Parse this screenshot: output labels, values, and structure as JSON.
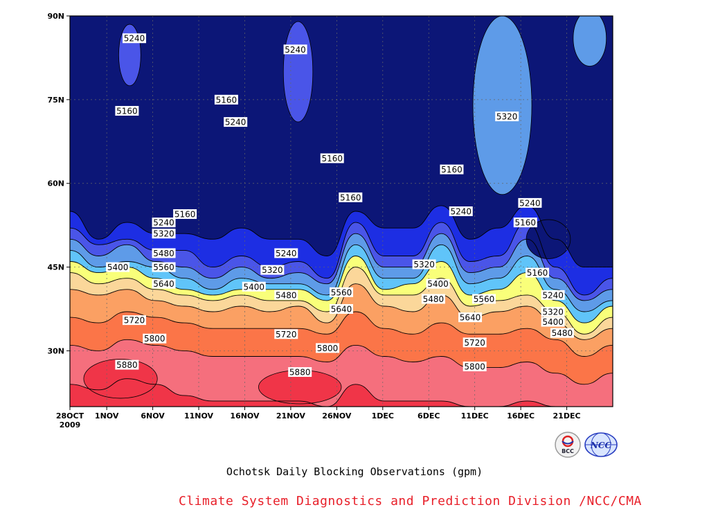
{
  "chart_data": {
    "type": "heatmap",
    "title": "Ochotsk Daily Blocking Observations (gpm)",
    "credit": "Climate System Diagnostics and Prediction Division /NCC/CMA",
    "x_axis": {
      "start_label": [
        "28OCT",
        "2009"
      ],
      "tick_labels": [
        "28OCT",
        "1NOV",
        "6NOV",
        "11NOV",
        "16NOV",
        "21NOV",
        "26NOV",
        "1DEC",
        "6DEC",
        "11DEC",
        "16DEC",
        "21DEC"
      ],
      "tick_days": [
        0,
        4,
        9,
        14,
        19,
        24,
        29,
        34,
        39,
        44,
        49,
        54
      ],
      "range_days": [
        0,
        59
      ]
    },
    "y_axis": {
      "tick_labels": [
        "30N",
        "45N",
        "60N",
        "75N",
        "90N"
      ],
      "tick_values": [
        30,
        45,
        60,
        75,
        90
      ],
      "range": [
        20,
        90
      ]
    },
    "contour_levels": [
      5160,
      5240,
      5320,
      5400,
      5480,
      5560,
      5640,
      5720,
      5800,
      5880
    ],
    "fill_colors": {
      "below_5160": "#0c1677",
      "5160_5240": "#1d2ee3",
      "5240_5320": "#4a55e8",
      "5320_5400": "#5e9be8",
      "5400_5480": "#60c4f9",
      "5480_5560": "#f9ff7a",
      "5560_5640": "#fbd79a",
      "5640_5720": "#fba063",
      "5720_5800": "#fb7548",
      "5800_5880": "#f56f7d",
      "above_5880": "#f03548"
    },
    "series": [
      {
        "level": 5160,
        "lat": [
          55,
          50,
          53,
          51,
          51,
          50,
          52,
          50,
          50,
          47,
          55,
          52,
          52,
          56,
          50,
          52,
          56,
          50,
          45,
          45
        ]
      },
      {
        "level": 5240,
        "lat": [
          52,
          49,
          50,
          48,
          48,
          45,
          47,
          45,
          46,
          43,
          53,
          47,
          47,
          53,
          46,
          47,
          53,
          45,
          40,
          43
        ]
      },
      {
        "level": 5320,
        "lat": [
          50,
          47,
          49,
          46,
          45,
          43,
          45,
          43,
          44,
          42,
          51,
          45,
          45,
          51,
          44,
          45,
          50,
          43,
          39,
          41
        ]
      },
      {
        "level": 5400,
        "lat": [
          48,
          45,
          46,
          45,
          43,
          41,
          43,
          42,
          42,
          40,
          49,
          43,
          43,
          49,
          42,
          43,
          47,
          41,
          37,
          39
        ]
      },
      {
        "level": 5480,
        "lat": [
          46,
          44,
          45,
          43,
          41,
          40,
          41,
          41,
          41,
          39,
          47,
          41,
          42,
          46,
          40,
          41,
          44,
          39,
          35,
          38
        ]
      },
      {
        "level": 5560,
        "lat": [
          44,
          42,
          43,
          41,
          40,
          39,
          40,
          39,
          39,
          37,
          45,
          40,
          40,
          43,
          38,
          39,
          40,
          37,
          33,
          36
        ]
      },
      {
        "level": 5640,
        "lat": [
          41,
          40,
          41,
          39,
          38,
          37,
          38,
          37,
          38,
          35,
          42,
          38,
          37,
          40,
          36,
          37,
          38,
          35,
          32,
          34
        ]
      },
      {
        "level": 5720,
        "lat": [
          36,
          35,
          37,
          36,
          35,
          34,
          34,
          34,
          34,
          33,
          37,
          34,
          33,
          35,
          33,
          33,
          34,
          32,
          29,
          31
        ]
      },
      {
        "level": 5800,
        "lat": [
          31,
          30,
          32,
          31,
          30,
          29,
          29,
          29,
          29,
          28,
          31,
          29,
          28,
          29,
          27,
          27,
          28,
          26,
          24,
          26
        ]
      },
      {
        "level": 5880,
        "lat": [
          24,
          23,
          25,
          24,
          22,
          21,
          21,
          21,
          21,
          20,
          24,
          21,
          21,
          21,
          20,
          20,
          21,
          20,
          20,
          20
        ]
      }
    ],
    "contour_labels": [
      {
        "text": "5240",
        "day": 7,
        "lat": 86
      },
      {
        "text": "5240",
        "day": 24.5,
        "lat": 84
      },
      {
        "text": "5160",
        "day": 6.2,
        "lat": 73
      },
      {
        "text": "5160",
        "day": 17,
        "lat": 75
      },
      {
        "text": "5240",
        "day": 18,
        "lat": 71
      },
      {
        "text": "5320",
        "day": 47.5,
        "lat": 72
      },
      {
        "text": "5160",
        "day": 28.5,
        "lat": 64.5
      },
      {
        "text": "5160",
        "day": 41.5,
        "lat": 62.5
      },
      {
        "text": "5160",
        "day": 30.5,
        "lat": 57.5
      },
      {
        "text": "5160",
        "day": 12.5,
        "lat": 54.5
      },
      {
        "text": "5240",
        "day": 42.5,
        "lat": 55
      },
      {
        "text": "5240",
        "day": 50,
        "lat": 56.5
      },
      {
        "text": "5160",
        "day": 49.5,
        "lat": 53
      },
      {
        "text": "5240",
        "day": 10.2,
        "lat": 53
      },
      {
        "text": "5320",
        "day": 10.2,
        "lat": 51
      },
      {
        "text": "5480",
        "day": 10.2,
        "lat": 47.5
      },
      {
        "text": "5240",
        "day": 23.5,
        "lat": 47.5
      },
      {
        "text": "5560",
        "day": 10.2,
        "lat": 45
      },
      {
        "text": "5400",
        "day": 5.2,
        "lat": 45
      },
      {
        "text": "5320",
        "day": 22,
        "lat": 44.5
      },
      {
        "text": "5320",
        "day": 38.5,
        "lat": 45.5
      },
      {
        "text": "5160",
        "day": 50.8,
        "lat": 44
      },
      {
        "text": "5640",
        "day": 10.2,
        "lat": 42
      },
      {
        "text": "5400",
        "day": 20,
        "lat": 41.5
      },
      {
        "text": "5400",
        "day": 40,
        "lat": 42
      },
      {
        "text": "5480",
        "day": 23.5,
        "lat": 40
      },
      {
        "text": "5560",
        "day": 29.5,
        "lat": 40.5
      },
      {
        "text": "5240",
        "day": 52.5,
        "lat": 40
      },
      {
        "text": "5480",
        "day": 39.5,
        "lat": 39.3
      },
      {
        "text": "5560",
        "day": 45,
        "lat": 39.3
      },
      {
        "text": "5640",
        "day": 29.5,
        "lat": 37.5
      },
      {
        "text": "5320",
        "day": 52.5,
        "lat": 37
      },
      {
        "text": "5640",
        "day": 43.5,
        "lat": 36
      },
      {
        "text": "5720",
        "day": 7,
        "lat": 35.5
      },
      {
        "text": "5400",
        "day": 52.5,
        "lat": 35.2
      },
      {
        "text": "5480",
        "day": 53.5,
        "lat": 33.2
      },
      {
        "text": "5720",
        "day": 23.5,
        "lat": 33
      },
      {
        "text": "5800",
        "day": 9.2,
        "lat": 32.2
      },
      {
        "text": "5720",
        "day": 44,
        "lat": 31.5
      },
      {
        "text": "5800",
        "day": 28,
        "lat": 30.5
      },
      {
        "text": "5880",
        "day": 6.2,
        "lat": 27.5
      },
      {
        "text": "5800",
        "day": 44,
        "lat": 27.2
      },
      {
        "text": "5880",
        "day": 25,
        "lat": 26.2
      }
    ]
  },
  "logos": {
    "left": "BCC",
    "right": "NCC"
  }
}
